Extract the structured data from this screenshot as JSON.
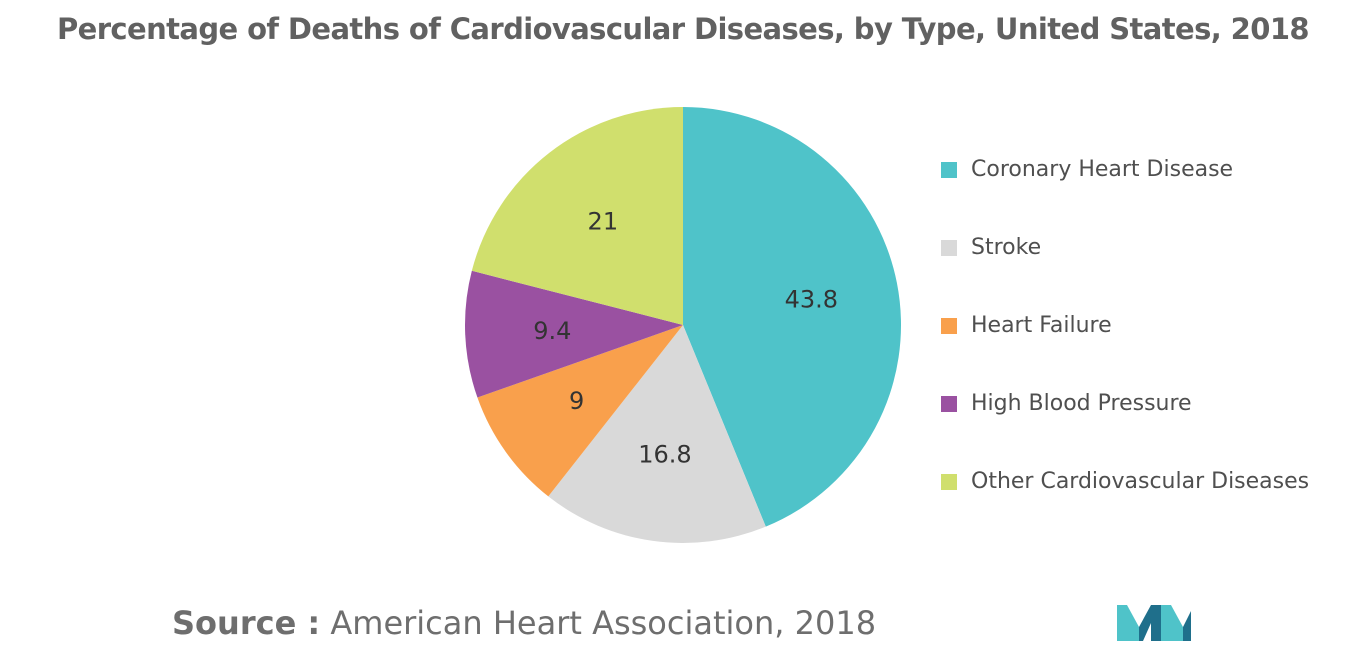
{
  "chart_data": {
    "type": "pie",
    "title": "Percentage of Deaths of Cardiovascular Diseases, by Type, United States, 2018",
    "slices": [
      {
        "label": "Coronary Heart Disease",
        "value": 43.8,
        "display": "43.8",
        "color": "#4fc3c9"
      },
      {
        "label": "Stroke",
        "value": 16.8,
        "display": "16.8",
        "color": "#d9d9d9"
      },
      {
        "label": "Heart Failure",
        "value": 9,
        "display": "9",
        "color": "#f9a04c"
      },
      {
        "label": "High Blood Pressure",
        "value": 9.4,
        "display": "9.4",
        "color": "#9a51a1"
      },
      {
        "label": "Other Cardiovascular Diseases",
        "value": 21,
        "display": "21",
        "color": "#d0df6d"
      }
    ],
    "legend_position": "right",
    "start": "12 o'clock, clockwise"
  },
  "source": {
    "label": "Source :",
    "text": "American Heart Association, 2018"
  },
  "colors": {
    "title": "#616161",
    "label_text": "#333333",
    "logo_dark": "#1f6f8b",
    "logo_light": "#4fc3c9"
  }
}
